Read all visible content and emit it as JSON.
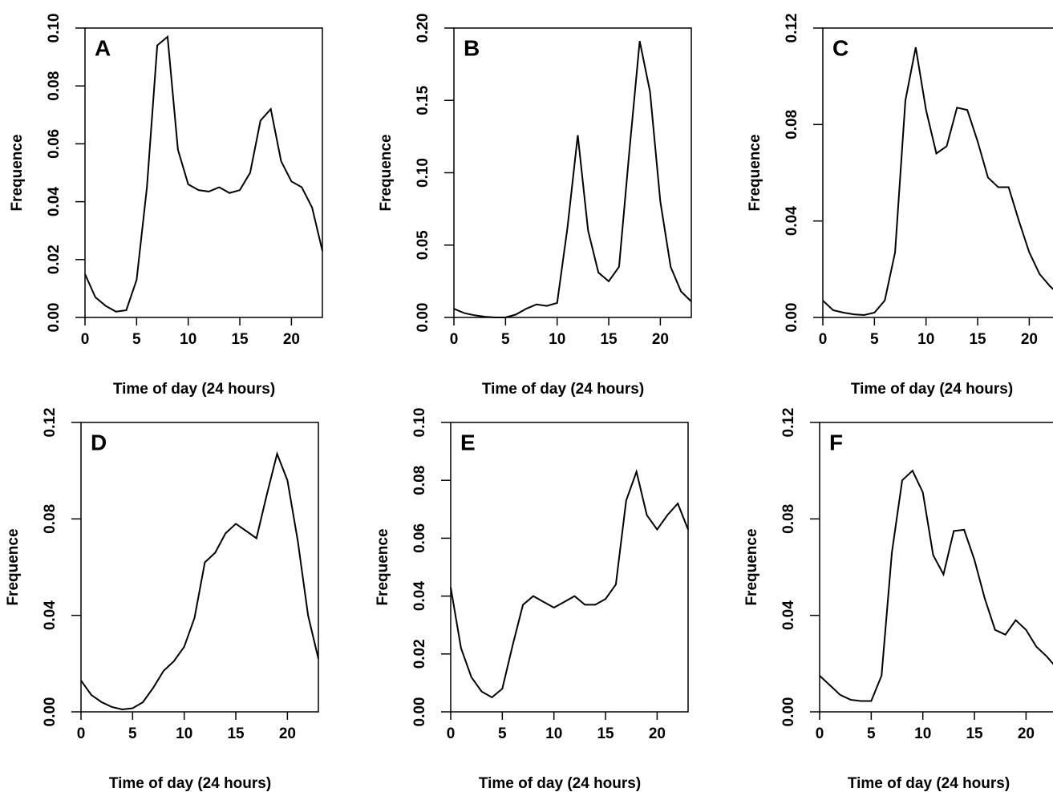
{
  "chart_data": [
    {
      "type": "line",
      "label": "A",
      "xlabel": "Time of day (24 hours)",
      "ylabel": "Frequence",
      "x": [
        0,
        1,
        2,
        3,
        4,
        5,
        6,
        7,
        8,
        9,
        10,
        11,
        12,
        13,
        14,
        15,
        16,
        17,
        18,
        19,
        20,
        21,
        22,
        23
      ],
      "values": [
        0.015,
        0.007,
        0.004,
        0.002,
        0.0025,
        0.013,
        0.045,
        0.094,
        0.097,
        0.058,
        0.046,
        0.044,
        0.0435,
        0.045,
        0.043,
        0.044,
        0.05,
        0.068,
        0.072,
        0.054,
        0.047,
        0.045,
        0.038,
        0.023
      ],
      "color": "#000000",
      "xlim": [
        0,
        23
      ],
      "xticks": [
        0,
        5,
        10,
        15,
        20
      ],
      "ylim": [
        0,
        0.1
      ],
      "yticks": [
        {
          "value": 0,
          "label": "0.00"
        },
        {
          "value": 0.02,
          "label": "0.02"
        },
        {
          "value": 0.04,
          "label": "0.04"
        },
        {
          "value": 0.06,
          "label": "0.06"
        },
        {
          "value": 0.08,
          "label": "0.08"
        },
        {
          "value": 0.1,
          "label": "0.10"
        }
      ]
    },
    {
      "type": "line",
      "label": "B",
      "xlabel": "Time of day (24 hours)",
      "ylabel": "Frequence",
      "x": [
        0,
        1,
        2,
        3,
        4,
        5,
        6,
        7,
        8,
        9,
        10,
        11,
        12,
        13,
        14,
        15,
        16,
        17,
        18,
        19,
        20,
        21,
        22,
        23
      ],
      "values": [
        0.006,
        0.003,
        0.0015,
        0.0005,
        0,
        0,
        0.002,
        0.006,
        0.009,
        0.008,
        0.01,
        0.062,
        0.126,
        0.06,
        0.031,
        0.025,
        0.035,
        0.115,
        0.191,
        0.156,
        0.08,
        0.035,
        0.018,
        0.011
      ],
      "color": "#000000",
      "xlim": [
        0,
        23
      ],
      "xticks": [
        0,
        5,
        10,
        15,
        20
      ],
      "ylim": [
        0,
        0.2
      ],
      "yticks": [
        {
          "value": 0,
          "label": "0.00"
        },
        {
          "value": 0.05,
          "label": "0.05"
        },
        {
          "value": 0.1,
          "label": "0.10"
        },
        {
          "value": 0.15,
          "label": "0.15"
        },
        {
          "value": 0.2,
          "label": "0.20"
        }
      ]
    },
    {
      "type": "line",
      "label": "C",
      "xlabel": "Time of day (24 hours)",
      "ylabel": "Frequence",
      "x": [
        0,
        1,
        2,
        3,
        4,
        5,
        6,
        7,
        8,
        9,
        10,
        11,
        12,
        13,
        14,
        15,
        16,
        17,
        18,
        19,
        20,
        21,
        22,
        23
      ],
      "values": [
        0.007,
        0.003,
        0.002,
        0.0013,
        0.001,
        0.002,
        0.007,
        0.027,
        0.09,
        0.112,
        0.086,
        0.068,
        0.071,
        0.087,
        0.086,
        0.073,
        0.058,
        0.054,
        0.054,
        0.04,
        0.027,
        0.018,
        0.013,
        0.009
      ],
      "color": "#000000",
      "xlim": [
        0,
        23
      ],
      "xticks": [
        0,
        5,
        10,
        15,
        20
      ],
      "ylim": [
        0,
        0.12
      ],
      "yticks": [
        {
          "value": 0,
          "label": "0.00"
        },
        {
          "value": 0.04,
          "label": "0.04"
        },
        {
          "value": 0.08,
          "label": "0.08"
        },
        {
          "value": 0.12,
          "label": "0.12"
        }
      ]
    },
    {
      "type": "line",
      "label": "D",
      "xlabel": "Time of day (24 hours)",
      "ylabel": "Frequence",
      "x": [
        0,
        1,
        2,
        3,
        4,
        5,
        6,
        7,
        8,
        9,
        10,
        11,
        12,
        13,
        14,
        15,
        16,
        17,
        18,
        19,
        20,
        21,
        22,
        23
      ],
      "values": [
        0.013,
        0.007,
        0.004,
        0.002,
        0.001,
        0.0015,
        0.004,
        0.01,
        0.017,
        0.021,
        0.027,
        0.039,
        0.062,
        0.066,
        0.074,
        0.078,
        0.075,
        0.072,
        0.09,
        0.107,
        0.096,
        0.071,
        0.04,
        0.022
      ],
      "color": "#000000",
      "xlim": [
        0,
        23
      ],
      "xticks": [
        0,
        5,
        10,
        15,
        20
      ],
      "ylim": [
        0,
        0.12
      ],
      "yticks": [
        {
          "value": 0,
          "label": "0.00"
        },
        {
          "value": 0.04,
          "label": "0.04"
        },
        {
          "value": 0.08,
          "label": "0.08"
        },
        {
          "value": 0.12,
          "label": "0.12"
        }
      ]
    },
    {
      "type": "line",
      "label": "E",
      "xlabel": "Time of day (24 hours)",
      "ylabel": "Frequence",
      "x": [
        0,
        1,
        2,
        3,
        4,
        5,
        6,
        7,
        8,
        9,
        10,
        11,
        12,
        13,
        14,
        15,
        16,
        17,
        18,
        19,
        20,
        21,
        22,
        23
      ],
      "values": [
        0.043,
        0.022,
        0.012,
        0.007,
        0.005,
        0.008,
        0.023,
        0.037,
        0.04,
        0.038,
        0.036,
        0.038,
        0.04,
        0.037,
        0.037,
        0.039,
        0.044,
        0.073,
        0.083,
        0.068,
        0.063,
        0.068,
        0.072,
        0.063
      ],
      "color": "#000000",
      "xlim": [
        0,
        23
      ],
      "xticks": [
        0,
        5,
        10,
        15,
        20
      ],
      "ylim": [
        0,
        0.1
      ],
      "yticks": [
        {
          "value": 0,
          "label": "0.00"
        },
        {
          "value": 0.02,
          "label": "0.02"
        },
        {
          "value": 0.04,
          "label": "0.04"
        },
        {
          "value": 0.06,
          "label": "0.06"
        },
        {
          "value": 0.08,
          "label": "0.08"
        },
        {
          "value": 0.1,
          "label": "0.10"
        }
      ]
    },
    {
      "type": "line",
      "label": "F",
      "xlabel": "Time of day (24 hours)",
      "ylabel": "Frequence",
      "x": [
        0,
        1,
        2,
        3,
        4,
        5,
        6,
        7,
        8,
        9,
        10,
        11,
        12,
        13,
        14,
        15,
        16,
        17,
        18,
        19,
        20,
        21,
        22,
        23
      ],
      "values": [
        0.015,
        0.011,
        0.007,
        0.005,
        0.0045,
        0.0045,
        0.015,
        0.066,
        0.096,
        0.1,
        0.091,
        0.065,
        0.057,
        0.075,
        0.0755,
        0.063,
        0.047,
        0.034,
        0.032,
        0.038,
        0.034,
        0.027,
        0.023,
        0.018
      ],
      "color": "#000000",
      "xlim": [
        0,
        23
      ],
      "xticks": [
        0,
        5,
        10,
        15,
        20
      ],
      "ylim": [
        0,
        0.12
      ],
      "yticks": [
        {
          "value": 0,
          "label": "0.00"
        },
        {
          "value": 0.04,
          "label": "0.04"
        },
        {
          "value": 0.08,
          "label": "0.08"
        },
        {
          "value": 0.12,
          "label": "0.12"
        }
      ]
    }
  ]
}
